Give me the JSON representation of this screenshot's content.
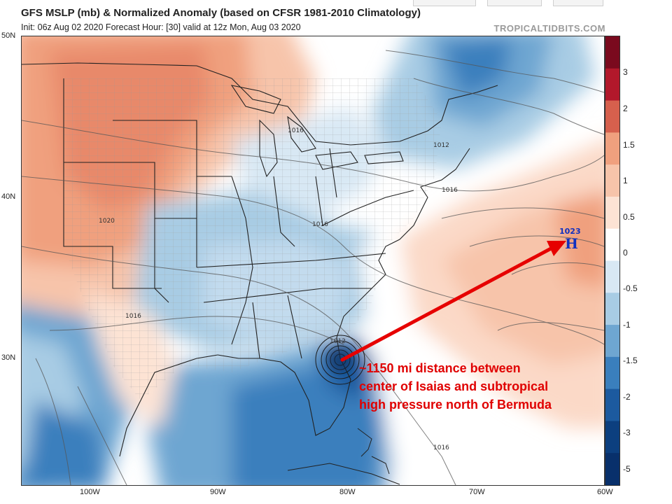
{
  "header": {
    "title": "GFS MSLP (mb) & Normalized Anomaly (based on CFSR 1981-2010 Climatology)",
    "subtitle": "Init: 06z Aug 02 2020   Forecast Hour: [30]   valid at 12z Mon, Aug 03 2020",
    "watermark": "TROPICALTIDBITS.COM"
  },
  "map": {
    "latitude_labels": [
      "50N",
      "40N",
      "30N"
    ],
    "longitude_labels": [
      "100W",
      "90W",
      "80W",
      "70W",
      "60W"
    ],
    "isobar_labels": [
      "1016",
      "1012",
      "1016",
      "1020",
      "1016",
      "1016",
      "1012",
      "1016"
    ],
    "high_pressure": {
      "symbol": "H",
      "value": "1023"
    },
    "annotation_lines": [
      "~1150 mi distance between",
      "center of Isaias and subtropical",
      "high pressure north of Bermuda"
    ],
    "colors": {
      "annotation": "#e00000",
      "arrow": "#e60000",
      "high_label": "#1030c0",
      "neg_strong": "#08306b",
      "neg_mid": "#3a7fbd",
      "neg_light": "#c3dbee",
      "neutral": "#ffffff",
      "pos_light": "#fbd9c7",
      "pos_mid": "#f0a07e",
      "pos_strong": "#d6604d"
    }
  },
  "colorbar": {
    "ticks": [
      "3",
      "2",
      "1.5",
      "1",
      "0.5",
      "0",
      "-0.5",
      "-1",
      "-1.5",
      "-2",
      "-3",
      "-5"
    ],
    "colors": [
      "#7a0a1e",
      "#b2182b",
      "#d6604d",
      "#f0a07e",
      "#f7c4aa",
      "#fde3d4",
      "#ffffff",
      "#d8e8f4",
      "#a8cce4",
      "#6ea6d1",
      "#3a7fbd",
      "#1c5a9f",
      "#0c3f7f",
      "#08306b"
    ]
  }
}
